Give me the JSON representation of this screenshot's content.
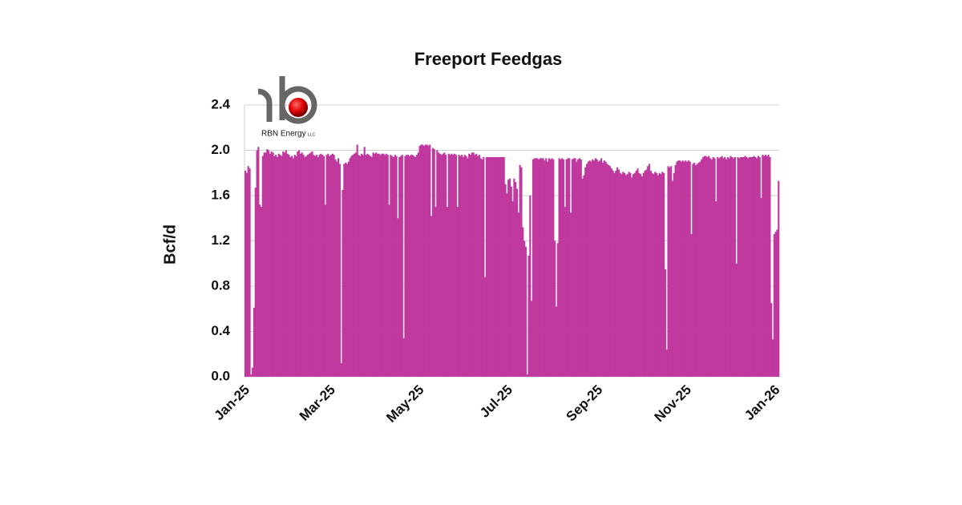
{
  "logo": {
    "name": "RBN Energy",
    "suffix": "LLC"
  },
  "chart_data": {
    "type": "bar",
    "title": "Freeport Feedgas",
    "y_label": "Bcf/d",
    "color": "#c0399e",
    "grid": true,
    "ylim": [
      0,
      2.4
    ],
    "yticks": [
      {
        "value": 0,
        "label": "0.0"
      },
      0.4,
      0.8,
      1.2,
      1.6,
      {
        "value": 2,
        "label": "2.0"
      },
      2.4
    ],
    "categories": [
      "Jan-25",
      null,
      null,
      null,
      null,
      null,
      null,
      null,
      null,
      null,
      null,
      null,
      null,
      null,
      null,
      null,
      null,
      null,
      null,
      null,
      null,
      null,
      null,
      null,
      null,
      null,
      null,
      null,
      null,
      null,
      null,
      null,
      null,
      null,
      null,
      null,
      null,
      null,
      null,
      null,
      null,
      null,
      null,
      null,
      null,
      null,
      null,
      null,
      null,
      null,
      null,
      null,
      null,
      null,
      null,
      null,
      null,
      null,
      null,
      "Mar-25",
      null,
      null,
      null,
      null,
      null,
      null,
      null,
      null,
      null,
      null,
      null,
      null,
      null,
      null,
      null,
      null,
      null,
      null,
      null,
      null,
      null,
      null,
      null,
      null,
      null,
      null,
      null,
      null,
      null,
      null,
      null,
      null,
      null,
      null,
      null,
      null,
      null,
      null,
      null,
      null,
      null,
      null,
      null,
      null,
      null,
      null,
      null,
      null,
      null,
      null,
      null,
      null,
      null,
      null,
      null,
      null,
      null,
      null,
      null,
      null,
      "May-25",
      null,
      null,
      null,
      null,
      null,
      null,
      null,
      null,
      null,
      null,
      null,
      null,
      null,
      null,
      null,
      null,
      null,
      null,
      null,
      null,
      null,
      null,
      null,
      null,
      null,
      null,
      null,
      null,
      null,
      null,
      null,
      null,
      null,
      null,
      null,
      null,
      null,
      null,
      null,
      null,
      null,
      null,
      null,
      null,
      null,
      null,
      null,
      null,
      null,
      null,
      null,
      null,
      null,
      null,
      null,
      null,
      null,
      null,
      null,
      null,
      "Jul-25",
      null,
      null,
      null,
      null,
      null,
      null,
      null,
      null,
      null,
      null,
      null,
      null,
      null,
      null,
      null,
      null,
      null,
      null,
      null,
      null,
      null,
      null,
      null,
      null,
      null,
      null,
      null,
      null,
      null,
      null,
      null,
      null,
      null,
      null,
      null,
      null,
      null,
      null,
      null,
      null,
      null,
      null,
      null,
      null,
      null,
      null,
      null,
      null,
      null,
      null,
      null,
      null,
      null,
      null,
      null,
      null,
      null,
      null,
      null,
      null,
      null,
      "Sep-25",
      null,
      null,
      null,
      null,
      null,
      null,
      null,
      null,
      null,
      null,
      null,
      null,
      null,
      null,
      null,
      null,
      null,
      null,
      null,
      null,
      null,
      null,
      null,
      null,
      null,
      null,
      null,
      null,
      null,
      null,
      null,
      null,
      null,
      null,
      null,
      null,
      null,
      null,
      null,
      null,
      null,
      null,
      null,
      null,
      null,
      null,
      null,
      null,
      null,
      null,
      null,
      null,
      null,
      null,
      null,
      null,
      null,
      null,
      null,
      null,
      "Nov-25",
      null,
      null,
      null,
      null,
      null,
      null,
      null,
      null,
      null,
      null,
      null,
      null,
      null,
      null,
      null,
      null,
      null,
      null,
      null,
      null,
      null,
      null,
      null,
      null,
      null,
      null,
      null,
      null,
      null,
      null,
      null,
      null,
      null,
      null,
      null,
      null,
      null,
      null,
      null,
      null,
      null,
      null,
      null,
      null,
      null,
      null,
      null,
      null,
      null,
      null,
      null,
      null,
      null,
      null,
      null,
      null,
      null,
      null,
      null,
      null,
      "Jan-26",
      null,
      null
    ],
    "values": [
      1.82,
      1.8,
      1.86,
      1.84,
      0.02,
      0.08,
      0.61,
      1.67,
      2.0,
      2.03,
      1.52,
      1.5,
      1.95,
      1.98,
      1.98,
      2.01,
      2.0,
      1.97,
      1.99,
      1.98,
      1.95,
      1.96,
      1.94,
      1.97,
      1.96,
      1.95,
      1.99,
      1.98,
      2.0,
      1.97,
      1.96,
      1.94,
      1.95,
      1.93,
      1.96,
      1.95,
      1.99,
      2.0,
      1.97,
      1.98,
      1.96,
      1.94,
      1.95,
      1.96,
      1.97,
      1.98,
      1.99,
      1.96,
      1.95,
      1.96,
      1.94,
      1.96,
      1.97,
      1.96,
      1.95,
      1.52,
      1.96,
      1.97,
      1.95,
      1.96,
      1.97,
      1.96,
      1.92,
      1.9,
      1.93,
      1.88,
      0.12,
      1.65,
      1.88,
      1.89,
      1.88,
      1.9,
      1.93,
      1.95,
      1.96,
      1.97,
      1.98,
      2.05,
      1.96,
      1.95,
      1.97,
      1.96,
      2.03,
      1.96,
      1.97,
      1.96,
      1.95,
      1.94,
      1.98,
      1.97,
      1.98,
      1.97,
      1.97,
      1.96,
      1.97,
      1.97,
      1.96,
      1.97,
      1.96,
      1.52,
      1.96,
      1.95,
      1.94,
      1.96,
      1.95,
      1.4,
      1.94,
      1.95,
      1.96,
      0.34,
      1.95,
      1.96,
      1.96,
      1.95,
      1.96,
      1.96,
      1.95,
      1.94,
      1.96,
      1.98,
      2.04,
      2.05,
      2.05,
      2.04,
      2.05,
      2.05,
      2.04,
      2.05,
      1.42,
      2.02,
      2.01,
      1.5,
      2.0,
      1.98,
      1.97,
      1.96,
      1.97,
      1.98,
      1.96,
      1.5,
      1.97,
      1.96,
      1.97,
      1.96,
      1.97,
      1.96,
      1.5,
      1.96,
      1.95,
      1.96,
      1.94,
      1.96,
      1.95,
      1.93,
      1.97,
      1.96,
      1.98,
      1.98,
      1.96,
      1.97,
      1.95,
      1.96,
      1.93,
      1.92,
      1.94,
      0.88,
      1.94,
      1.94,
      1.94,
      1.94,
      1.94,
      1.94,
      1.94,
      1.94,
      1.94,
      1.94,
      1.94,
      1.94,
      1.94,
      1.7,
      1.62,
      1.74,
      1.75,
      1.68,
      1.55,
      1.75,
      1.72,
      1.66,
      1.45,
      1.87,
      1.85,
      1.32,
      1.2,
      1.15,
      0.02,
      1.07,
      1.6,
      0.67,
      1.92,
      1.93,
      1.93,
      1.93,
      1.92,
      1.93,
      1.93,
      1.93,
      1.91,
      1.93,
      1.9,
      1.93,
      1.92,
      1.93,
      1.92,
      1.2,
      0.62,
      1.18,
      1.93,
      1.92,
      1.93,
      1.92,
      1.5,
      1.92,
      1.93,
      1.93,
      1.45,
      1.92,
      1.93,
      1.93,
      1.9,
      1.92,
      1.93,
      1.92,
      1.75,
      1.78,
      1.85,
      1.88,
      1.9,
      1.91,
      1.9,
      1.92,
      1.91,
      1.93,
      1.92,
      1.9,
      1.91,
      1.93,
      1.89,
      1.91,
      1.9,
      1.88,
      1.87,
      1.86,
      1.84,
      1.82,
      1.8,
      1.82,
      1.85,
      1.83,
      1.8,
      1.79,
      1.81,
      1.8,
      1.78,
      1.79,
      1.81,
      1.8,
      1.76,
      1.79,
      1.8,
      1.82,
      1.84,
      1.8,
      1.79,
      1.77,
      1.8,
      1.82,
      1.83,
      1.86,
      1.88,
      1.82,
      1.8,
      1.79,
      1.81,
      1.8,
      1.78,
      1.8,
      1.79,
      1.81,
      1.8,
      0.95,
      0.24,
      1.86,
      1.85,
      1.86,
      1.73,
      1.8,
      1.87,
      1.9,
      1.91,
      1.91,
      1.9,
      1.91,
      1.9,
      1.91,
      1.9,
      1.91,
      1.9,
      1.26,
      1.88,
      1.89,
      1.87,
      1.88,
      1.89,
      1.9,
      1.92,
      1.94,
      1.95,
      1.95,
      1.94,
      1.95,
      1.93,
      1.92,
      1.94,
      1.93,
      1.55,
      1.94,
      1.93,
      1.94,
      1.95,
      1.93,
      1.94,
      1.92,
      1.94,
      1.93,
      1.95,
      1.94,
      1.93,
      1.94,
      1.0,
      1.94,
      1.93,
      1.94,
      1.94,
      1.94,
      1.95,
      1.94,
      1.93,
      1.94,
      1.94,
      1.94,
      1.95,
      1.94,
      1.93,
      1.95,
      1.94,
      1.58,
      1.96,
      1.95,
      1.96,
      1.95,
      1.96,
      1.94,
      0.65,
      0.33,
      1.26,
      1.28,
      1.3,
      1.73
    ]
  }
}
